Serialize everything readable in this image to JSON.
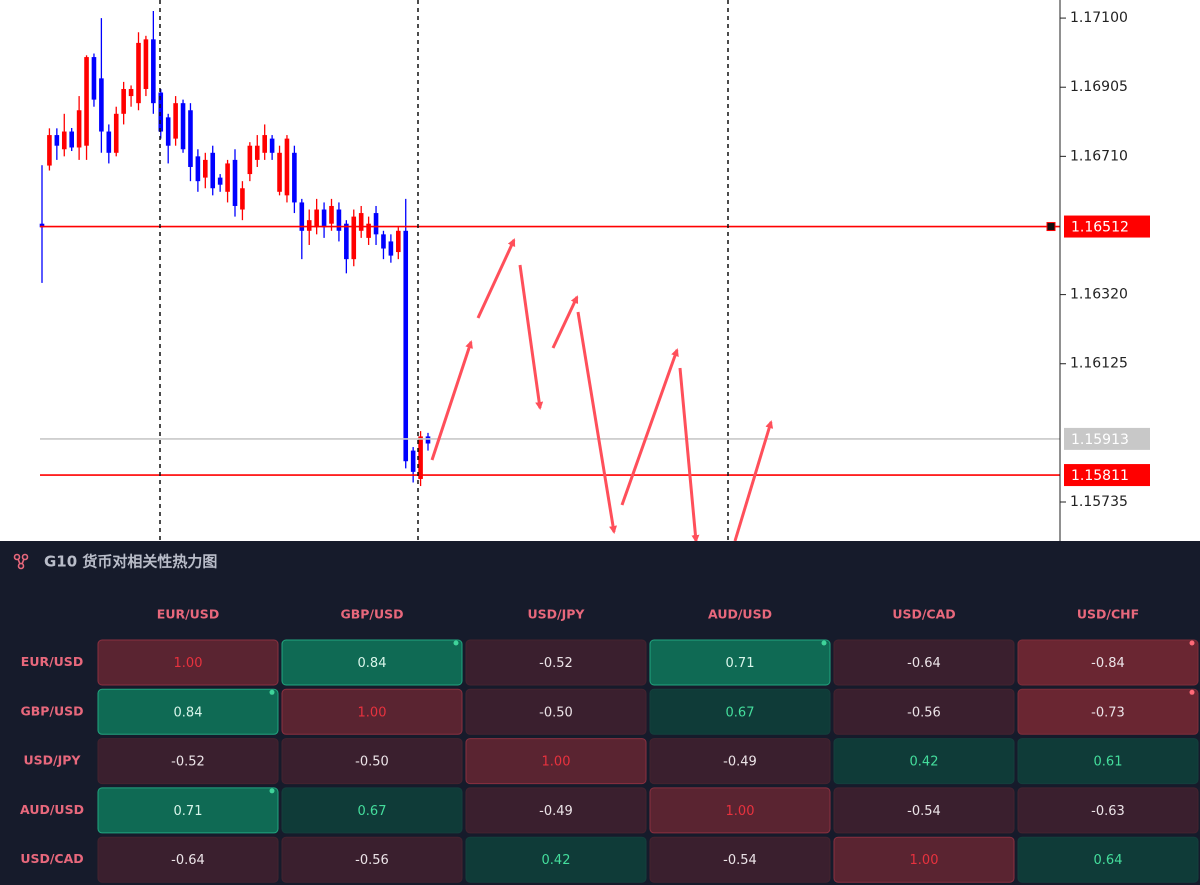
{
  "chart_data": {
    "type": "candlestick",
    "ylim": [
      1.15625,
      1.17151
    ],
    "yticks": [
      {
        "value": 1.171,
        "label": "1.17100"
      },
      {
        "value": 1.16905,
        "label": "1.16905"
      },
      {
        "value": 1.1671,
        "label": "1.16710"
      },
      {
        "value": 1.1632,
        "label": "1.16320"
      },
      {
        "value": 1.16125,
        "label": "1.16125"
      },
      {
        "value": 1.15735,
        "label": "1.15735"
      }
    ],
    "up_color": "#ff0000",
    "down_color": "#0000ff",
    "open": [
      1.1652,
      1.16684,
      1.1677,
      1.1673,
      1.1678,
      1.16735,
      1.1674,
      1.1699,
      1.1693,
      1.1678,
      1.1672,
      1.1683,
      1.1688,
      1.1686,
      1.169,
      1.1704,
      1.1689,
      1.1682,
      1.1676,
      1.1686,
      1.1684,
      1.1671,
      1.1665,
      1.1672,
      1.1665,
      1.1661,
      1.167,
      1.1656,
      1.1666,
      1.167,
      1.1672,
      1.1676,
      1.1661,
      1.166,
      1.1672,
      1.1658,
      1.165,
      1.1651,
      1.1656,
      1.1652,
      1.1656,
      1.1652,
      1.1642,
      1.165,
      1.1648,
      1.1655,
      1.1649,
      1.1647,
      1.1644,
      1.165,
      1.1588,
      1.158,
      1.1592
    ],
    "high": [
      1.16685,
      1.16789,
      1.16789,
      1.1683,
      1.1679,
      1.1688,
      1.16995,
      1.17,
      1.171,
      1.168,
      1.1685,
      1.1692,
      1.1691,
      1.1706,
      1.1705,
      1.1712,
      1.169,
      1.1683,
      1.1688,
      1.1687,
      1.1686,
      1.1673,
      1.1672,
      1.1674,
      1.1666,
      1.167,
      1.1673,
      1.1664,
      1.1675,
      1.1677,
      1.168,
      1.1677,
      1.1674,
      1.1677,
      1.1674,
      1.1659,
      1.1656,
      1.1659,
      1.1658,
      1.1659,
      1.1658,
      1.1653,
      1.1656,
      1.1657,
      1.1654,
      1.1657,
      1.165,
      1.1649,
      1.1651,
      1.1659,
      1.1589,
      1.15935,
      1.1593
    ],
    "low": [
      1.16353,
      1.1667,
      1.167,
      1.1671,
      1.16725,
      1.167,
      1.167,
      1.1685,
      1.1672,
      1.1669,
      1.1671,
      1.168,
      1.1685,
      1.1684,
      1.1688,
      1.1683,
      1.1676,
      1.1669,
      1.1674,
      1.1672,
      1.1664,
      1.1661,
      1.1662,
      1.166,
      1.1661,
      1.1658,
      1.1654,
      1.1653,
      1.1664,
      1.1668,
      1.167,
      1.167,
      1.166,
      1.1658,
      1.1655,
      1.1642,
      1.1646,
      1.1649,
      1.1648,
      1.165,
      1.1647,
      1.1638,
      1.164,
      1.1648,
      1.1646,
      1.1646,
      1.1642,
      1.1641,
      1.1642,
      1.1583,
      1.1579,
      1.1578,
      1.1588
    ],
    "close": [
      1.1651,
      1.1677,
      1.1674,
      1.1678,
      1.16735,
      1.1684,
      1.1699,
      1.1687,
      1.1678,
      1.1672,
      1.1683,
      1.169,
      1.169,
      1.1703,
      1.1704,
      1.1686,
      1.1678,
      1.1674,
      1.1686,
      1.1673,
      1.1668,
      1.1664,
      1.167,
      1.1662,
      1.1663,
      1.1669,
      1.1657,
      1.1662,
      1.1674,
      1.1674,
      1.1677,
      1.1672,
      1.1672,
      1.1676,
      1.1658,
      1.165,
      1.1653,
      1.1656,
      1.1651,
      1.1657,
      1.165,
      1.1642,
      1.1654,
      1.1655,
      1.1652,
      1.1649,
      1.1645,
      1.1643,
      1.165,
      1.1585,
      1.1582,
      1.1592,
      1.159
    ],
    "price_lines": [
      {
        "value": 1.16512,
        "label": "1.16512",
        "color": "#ff0000"
      },
      {
        "value": 1.15913,
        "label": "1.15913",
        "color": "#c8c8c8"
      },
      {
        "value": 1.15811,
        "label": "1.15811",
        "color": "#ff0000"
      }
    ]
  },
  "heatmap": {
    "title": "G10 货币对相关性热力图",
    "columns": [
      "EUR/USD",
      "GBP/USD",
      "USD/JPY",
      "AUD/USD",
      "USD/CAD",
      "USD/CHF"
    ],
    "rows": [
      {
        "label": "EUR/USD",
        "cells": [
          "1.00",
          "0.84",
          "-0.52",
          "0.71",
          "-0.64",
          "-0.84"
        ]
      },
      {
        "label": "GBP/USD",
        "cells": [
          "0.84",
          "1.00",
          "-0.50",
          "0.67",
          "-0.56",
          "-0.73"
        ]
      },
      {
        "label": "USD/JPY",
        "cells": [
          "-0.52",
          "-0.50",
          "1.00",
          "-0.49",
          "0.42",
          "0.61"
        ]
      },
      {
        "label": "AUD/USD",
        "cells": [
          "0.71",
          "0.67",
          "-0.49",
          "1.00",
          "-0.54",
          "-0.63"
        ]
      },
      {
        "label": "USD/CAD",
        "cells": [
          "-0.64",
          "-0.56",
          "0.42",
          "-0.54",
          "1.00",
          "0.64"
        ]
      }
    ]
  }
}
